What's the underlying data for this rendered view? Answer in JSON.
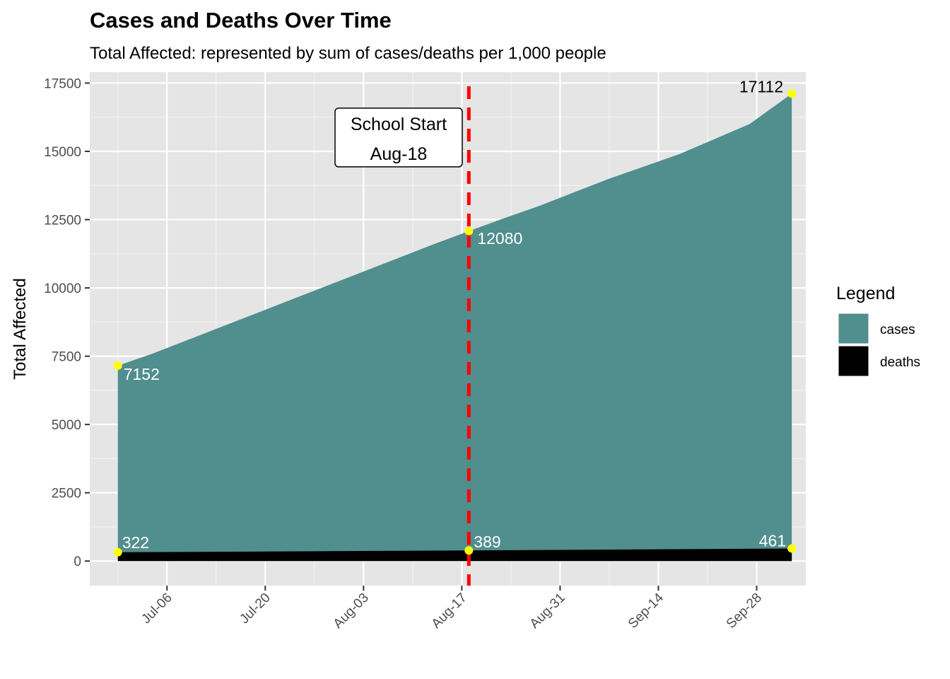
{
  "chart_data": {
    "type": "area",
    "title": "Cases and Deaths Over Time",
    "subtitle": "Total Affected: represented by sum of cases/deaths per 1,000 people",
    "xlabel": "",
    "ylabel": "Total Affected",
    "xlim": [
      "2020-06-25",
      "2020-10-05"
    ],
    "ylim": [
      -900,
      17900
    ],
    "x_ticks": [
      "Jul-06",
      "Jul-20",
      "Aug-03",
      "Aug-17",
      "Aug-31",
      "Sep-14",
      "Sep-28"
    ],
    "x_tick_dates": [
      "2020-07-06",
      "2020-07-20",
      "2020-08-03",
      "2020-08-17",
      "2020-08-31",
      "2020-09-14",
      "2020-09-28"
    ],
    "y_ticks": [
      0,
      2500,
      5000,
      7500,
      10000,
      12500,
      15000,
      17500
    ],
    "y_tick_labels": [
      "0",
      "2500",
      "5000",
      "7500",
      "10000",
      "12500",
      "15000",
      "17500"
    ],
    "grid": true,
    "legend": {
      "title": "Legend",
      "position": "right",
      "entries": [
        {
          "label": "cases",
          "color": "#518e8e"
        },
        {
          "label": "deaths",
          "color": "#000000"
        }
      ]
    },
    "series": [
      {
        "name": "cases",
        "color": "#518e8e",
        "x": [
          "2020-06-29",
          "2020-07-04",
          "2020-07-09",
          "2020-07-14",
          "2020-07-19",
          "2020-07-24",
          "2020-07-29",
          "2020-08-03",
          "2020-08-08",
          "2020-08-13",
          "2020-08-18",
          "2020-08-23",
          "2020-08-28",
          "2020-09-02",
          "2020-09-07",
          "2020-09-12",
          "2020-09-17",
          "2020-09-22",
          "2020-09-27",
          "2020-10-03"
        ],
        "values": [
          7152,
          7600,
          8100,
          8600,
          9100,
          9600,
          10100,
          10600,
          11100,
          11600,
          12080,
          12550,
          13000,
          13500,
          14000,
          14450,
          14900,
          15450,
          16000,
          17112
        ]
      },
      {
        "name": "deaths",
        "color": "#000000",
        "x": [
          "2020-06-29",
          "2020-08-18",
          "2020-10-03"
        ],
        "values": [
          322,
          389,
          461
        ]
      }
    ],
    "highlight_points": [
      {
        "x": "2020-06-29",
        "y": 7152,
        "label": "7152",
        "label_color": "#ffffff"
      },
      {
        "x": "2020-08-18",
        "y": 12080,
        "label": "12080",
        "label_color": "#ffffff"
      },
      {
        "x": "2020-10-03",
        "y": 17112,
        "label": "17112",
        "label_color": "#000000"
      },
      {
        "x": "2020-06-29",
        "y": 322,
        "label": "322",
        "label_color": "#ffffff"
      },
      {
        "x": "2020-08-18",
        "y": 389,
        "label": "389",
        "label_color": "#ffffff"
      },
      {
        "x": "2020-10-03",
        "y": 461,
        "label": "461",
        "label_color": "#ffffff"
      }
    ],
    "point_color": "#ffff00",
    "vline": {
      "x": "2020-08-18",
      "color": "#ff0000",
      "style": "dashed"
    },
    "annotation": {
      "lines": [
        "School Start",
        "Aug-18"
      ],
      "x": "2020-08-08",
      "y": 14950
    }
  }
}
